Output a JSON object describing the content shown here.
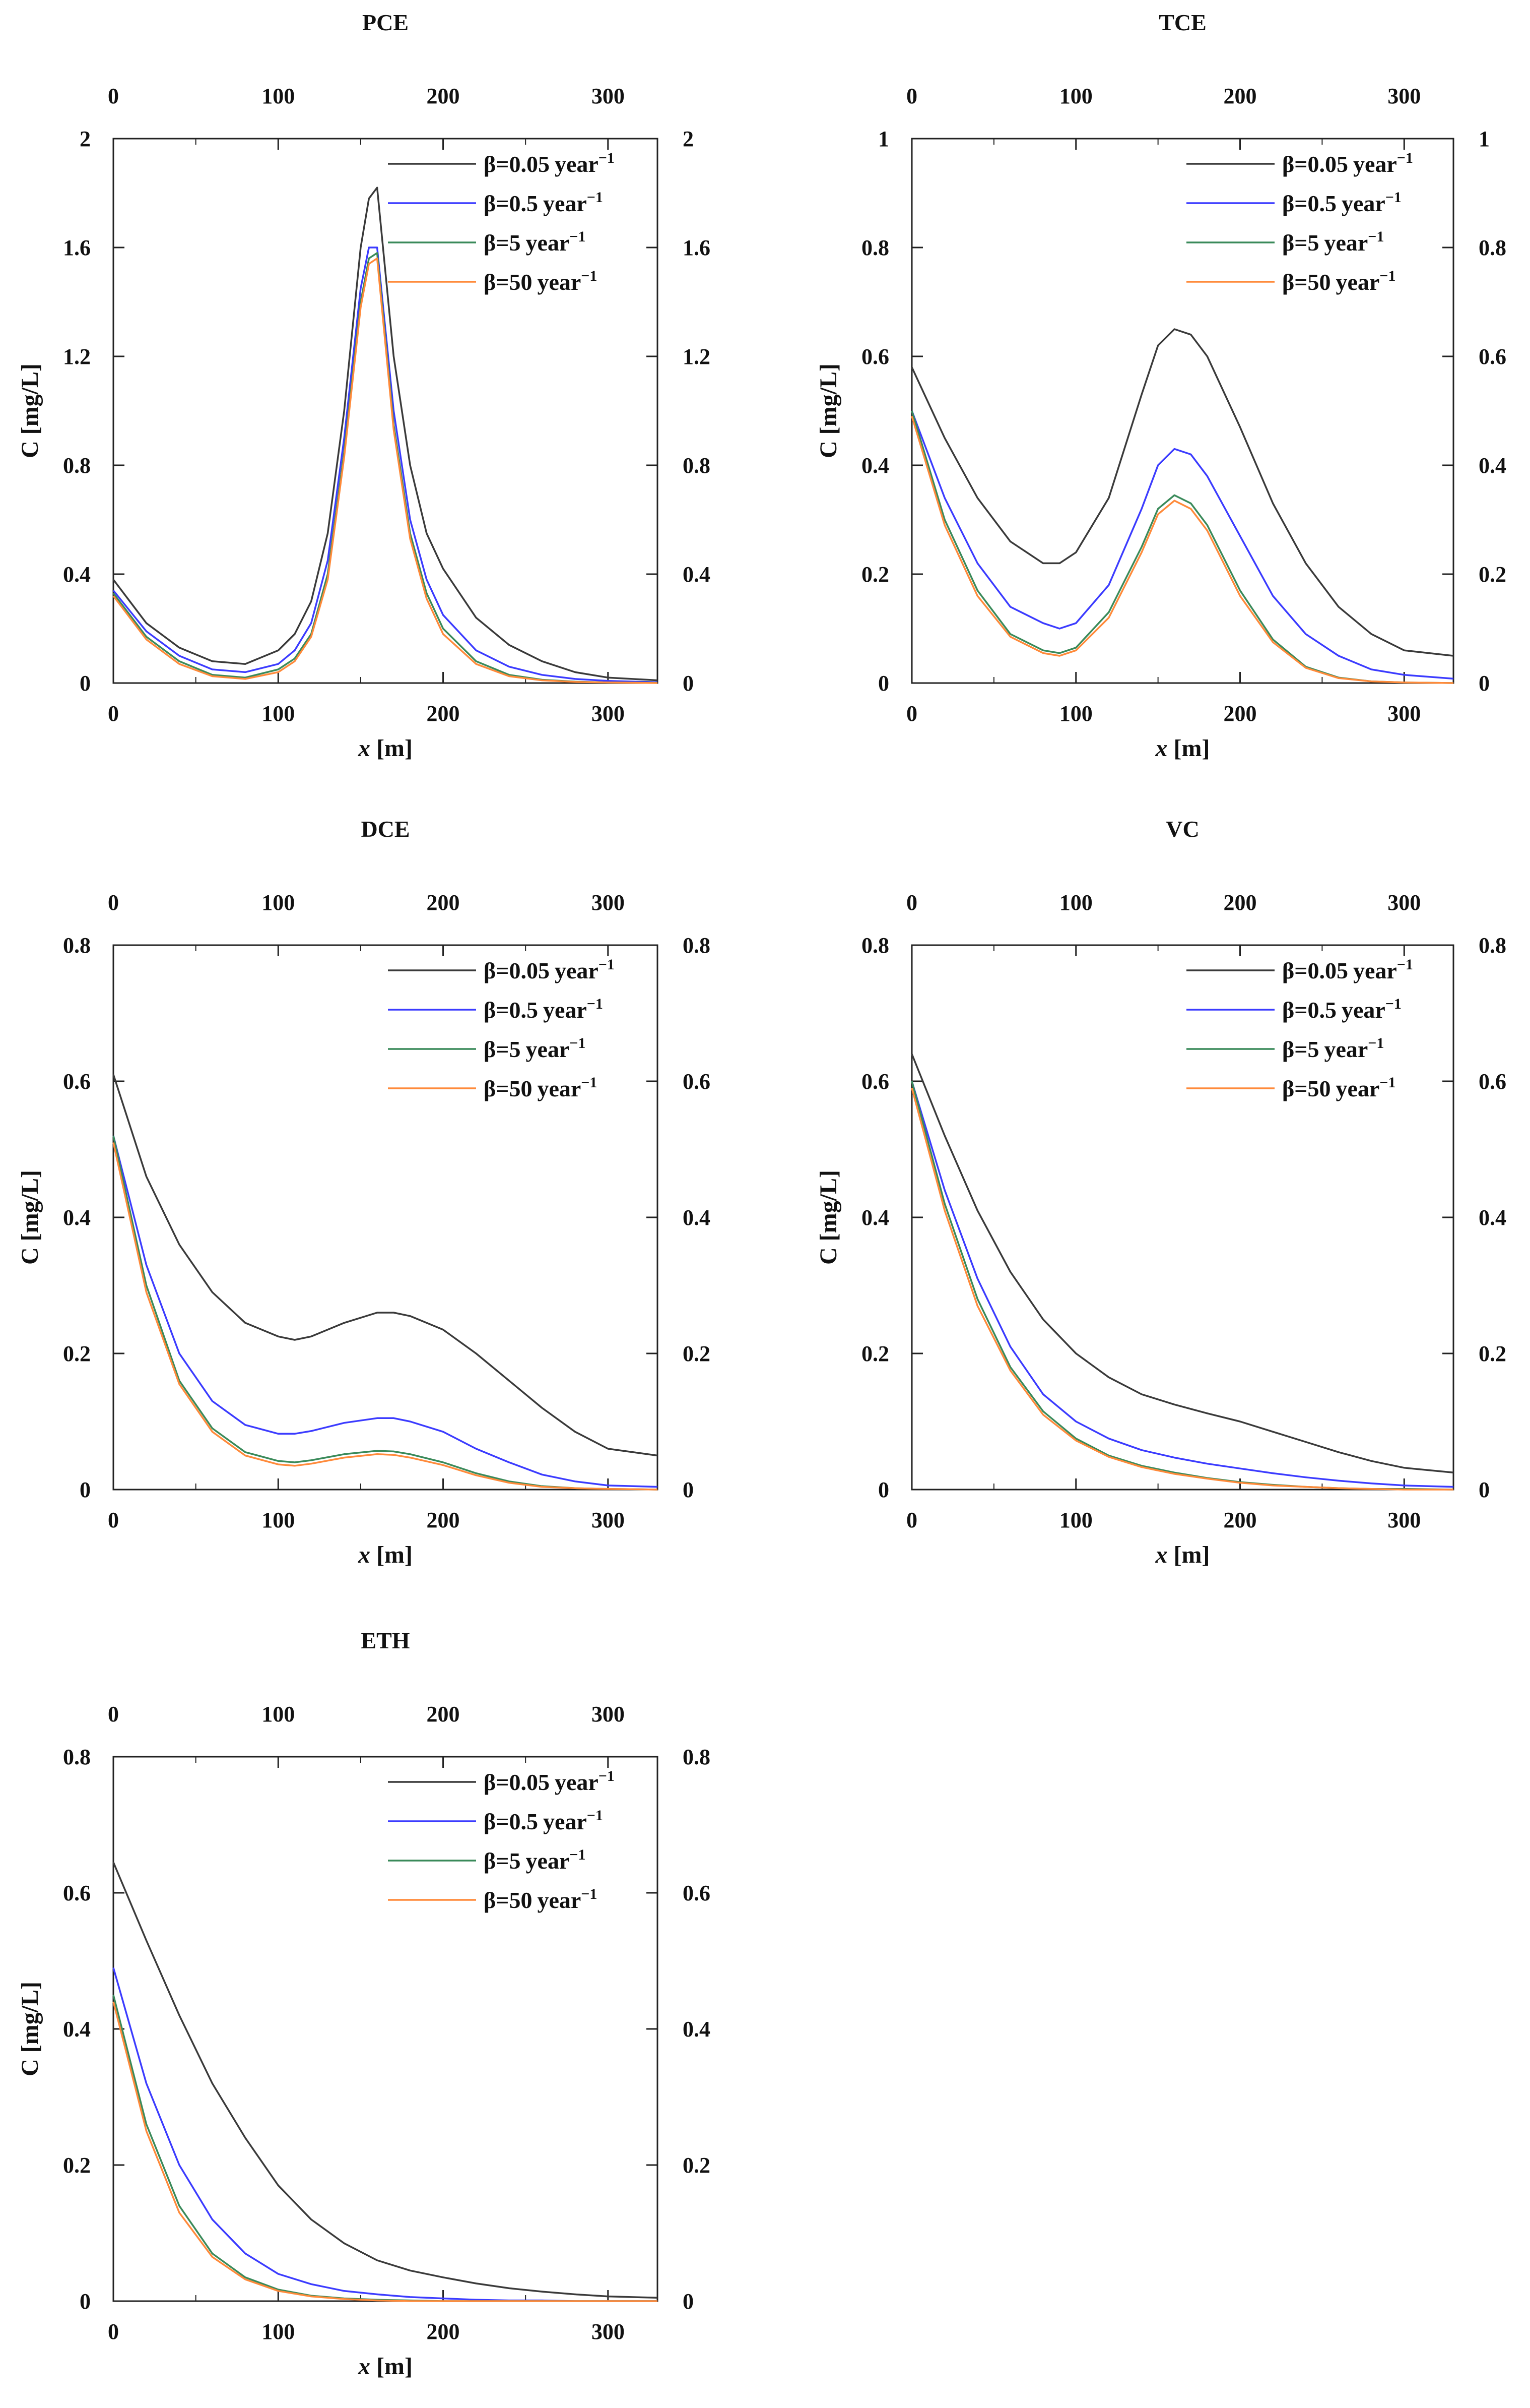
{
  "chart_data": [
    {
      "type": "line",
      "title": "PCE",
      "xlabel_var": "x",
      "xlabel_unit": "[m]",
      "ylabel": "C [mg/L]",
      "xlim": [
        0,
        330
      ],
      "ylim": [
        0,
        2
      ],
      "xticks": [
        0,
        100,
        200,
        300
      ],
      "xtick_labels": [
        "0",
        "100",
        "200",
        "300"
      ],
      "yticks": [
        0,
        0.4,
        0.8,
        1.2,
        1.6,
        2
      ],
      "ytick_labels": [
        "0",
        "0.4",
        "0.8",
        "1.2",
        "1.6",
        "2"
      ],
      "x": [
        0,
        20,
        40,
        60,
        80,
        100,
        110,
        120,
        130,
        140,
        150,
        155,
        160,
        170,
        180,
        190,
        200,
        220,
        240,
        260,
        280,
        300,
        330
      ],
      "series": [
        {
          "name": "β=0.05",
          "unit": "year",
          "exp": "−1",
          "values": [
            0.38,
            0.22,
            0.13,
            0.08,
            0.07,
            0.12,
            0.18,
            0.3,
            0.55,
            1.0,
            1.6,
            1.78,
            1.82,
            1.2,
            0.8,
            0.55,
            0.42,
            0.24,
            0.14,
            0.08,
            0.04,
            0.02,
            0.01
          ]
        },
        {
          "name": "β=0.5",
          "unit": "year",
          "exp": "−1",
          "values": [
            0.34,
            0.19,
            0.1,
            0.05,
            0.04,
            0.07,
            0.12,
            0.22,
            0.45,
            0.9,
            1.45,
            1.6,
            1.6,
            1.0,
            0.6,
            0.38,
            0.25,
            0.12,
            0.06,
            0.03,
            0.015,
            0.008,
            0.003
          ]
        },
        {
          "name": "β=5",
          "unit": "year",
          "exp": "−1",
          "values": [
            0.33,
            0.17,
            0.08,
            0.03,
            0.02,
            0.05,
            0.09,
            0.18,
            0.4,
            0.85,
            1.4,
            1.56,
            1.58,
            0.95,
            0.55,
            0.33,
            0.2,
            0.08,
            0.03,
            0.012,
            0.005,
            0.002,
            0.001
          ]
        },
        {
          "name": "β=50",
          "unit": "year",
          "exp": "−1",
          "values": [
            0.32,
            0.16,
            0.07,
            0.025,
            0.015,
            0.04,
            0.08,
            0.17,
            0.38,
            0.83,
            1.38,
            1.54,
            1.56,
            0.93,
            0.53,
            0.31,
            0.18,
            0.07,
            0.025,
            0.01,
            0.004,
            0.002,
            0.0
          ]
        }
      ]
    },
    {
      "type": "line",
      "title": "TCE",
      "xlabel_var": "x",
      "xlabel_unit": "[m]",
      "ylabel": "C [mg/L]",
      "xlim": [
        0,
        330
      ],
      "ylim": [
        0,
        1
      ],
      "xticks": [
        0,
        100,
        200,
        300
      ],
      "xtick_labels": [
        "0",
        "100",
        "200",
        "300"
      ],
      "yticks": [
        0,
        0.2,
        0.4,
        0.6,
        0.8,
        1
      ],
      "ytick_labels": [
        "0",
        "0.2",
        "0.4",
        "0.6",
        "0.8",
        "1"
      ],
      "x": [
        0,
        20,
        40,
        60,
        80,
        90,
        100,
        120,
        140,
        150,
        160,
        170,
        180,
        200,
        220,
        240,
        260,
        280,
        300,
        330
      ],
      "series": [
        {
          "name": "β=0.05",
          "unit": "year",
          "exp": "−1",
          "values": [
            0.58,
            0.45,
            0.34,
            0.26,
            0.22,
            0.22,
            0.24,
            0.34,
            0.53,
            0.62,
            0.65,
            0.64,
            0.6,
            0.47,
            0.33,
            0.22,
            0.14,
            0.09,
            0.06,
            0.05
          ]
        },
        {
          "name": "β=0.5",
          "unit": "year",
          "exp": "−1",
          "values": [
            0.5,
            0.34,
            0.22,
            0.14,
            0.11,
            0.1,
            0.11,
            0.18,
            0.32,
            0.4,
            0.43,
            0.42,
            0.38,
            0.27,
            0.16,
            0.09,
            0.05,
            0.025,
            0.015,
            0.008
          ]
        },
        {
          "name": "β=5",
          "unit": "year",
          "exp": "−1",
          "values": [
            0.5,
            0.3,
            0.17,
            0.09,
            0.06,
            0.055,
            0.065,
            0.13,
            0.25,
            0.32,
            0.345,
            0.33,
            0.29,
            0.17,
            0.08,
            0.03,
            0.01,
            0.003,
            0.001,
            0.0
          ]
        },
        {
          "name": "β=50",
          "unit": "year",
          "exp": "−1",
          "values": [
            0.49,
            0.29,
            0.16,
            0.085,
            0.055,
            0.05,
            0.06,
            0.12,
            0.24,
            0.31,
            0.335,
            0.32,
            0.28,
            0.16,
            0.075,
            0.028,
            0.009,
            0.003,
            0.001,
            0.0
          ]
        }
      ]
    },
    {
      "type": "line",
      "title": "DCE",
      "xlabel_var": "x",
      "xlabel_unit": "[m]",
      "ylabel": "C [mg/L]",
      "xlim": [
        0,
        330
      ],
      "ylim": [
        0,
        0.8
      ],
      "xticks": [
        0,
        100,
        200,
        300
      ],
      "xtick_labels": [
        "0",
        "100",
        "200",
        "300"
      ],
      "yticks": [
        0,
        0.2,
        0.4,
        0.6,
        0.8
      ],
      "ytick_labels": [
        "0",
        "0.2",
        "0.4",
        "0.6",
        "0.8"
      ],
      "x": [
        0,
        20,
        40,
        60,
        80,
        100,
        110,
        120,
        140,
        160,
        170,
        180,
        200,
        220,
        240,
        260,
        280,
        300,
        330
      ],
      "series": [
        {
          "name": "β=0.05",
          "unit": "year",
          "exp": "−1",
          "values": [
            0.61,
            0.46,
            0.36,
            0.29,
            0.245,
            0.225,
            0.22,
            0.225,
            0.245,
            0.26,
            0.26,
            0.255,
            0.235,
            0.2,
            0.16,
            0.12,
            0.085,
            0.06,
            0.05
          ]
        },
        {
          "name": "β=0.5",
          "unit": "year",
          "exp": "−1",
          "values": [
            0.52,
            0.33,
            0.2,
            0.13,
            0.095,
            0.082,
            0.082,
            0.086,
            0.098,
            0.105,
            0.105,
            0.1,
            0.085,
            0.06,
            0.04,
            0.022,
            0.012,
            0.006,
            0.004
          ]
        },
        {
          "name": "β=5",
          "unit": "year",
          "exp": "−1",
          "values": [
            0.52,
            0.3,
            0.16,
            0.09,
            0.055,
            0.042,
            0.04,
            0.043,
            0.052,
            0.057,
            0.056,
            0.052,
            0.04,
            0.024,
            0.012,
            0.005,
            0.002,
            0.001,
            0.0
          ]
        },
        {
          "name": "β=50",
          "unit": "year",
          "exp": "−1",
          "values": [
            0.51,
            0.29,
            0.155,
            0.085,
            0.05,
            0.037,
            0.035,
            0.038,
            0.047,
            0.052,
            0.051,
            0.047,
            0.036,
            0.021,
            0.01,
            0.004,
            0.002,
            0.001,
            0.0
          ]
        }
      ]
    },
    {
      "type": "line",
      "title": "VC",
      "xlabel_var": "x",
      "xlabel_unit": "[m]",
      "ylabel": "C [mg/L]",
      "xlim": [
        0,
        330
      ],
      "ylim": [
        0,
        0.8
      ],
      "xticks": [
        0,
        100,
        200,
        300
      ],
      "xtick_labels": [
        "0",
        "100",
        "200",
        "300"
      ],
      "yticks": [
        0,
        0.2,
        0.4,
        0.6,
        0.8
      ],
      "ytick_labels": [
        "0",
        "0.2",
        "0.4",
        "0.6",
        "0.8"
      ],
      "x": [
        0,
        20,
        40,
        60,
        80,
        100,
        120,
        140,
        160,
        180,
        200,
        220,
        240,
        260,
        280,
        300,
        330
      ],
      "series": [
        {
          "name": "β=0.05",
          "unit": "year",
          "exp": "−1",
          "values": [
            0.64,
            0.52,
            0.41,
            0.32,
            0.25,
            0.2,
            0.165,
            0.14,
            0.125,
            0.112,
            0.1,
            0.085,
            0.07,
            0.055,
            0.042,
            0.032,
            0.025
          ]
        },
        {
          "name": "β=0.5",
          "unit": "year",
          "exp": "−1",
          "values": [
            0.6,
            0.44,
            0.31,
            0.21,
            0.14,
            0.1,
            0.075,
            0.058,
            0.047,
            0.038,
            0.031,
            0.024,
            0.018,
            0.013,
            0.009,
            0.006,
            0.004
          ]
        },
        {
          "name": "β=5",
          "unit": "year",
          "exp": "−1",
          "values": [
            0.6,
            0.42,
            0.28,
            0.18,
            0.115,
            0.075,
            0.05,
            0.035,
            0.025,
            0.017,
            0.011,
            0.007,
            0.004,
            0.002,
            0.001,
            0.001,
            0.0
          ]
        },
        {
          "name": "β=50",
          "unit": "year",
          "exp": "−1",
          "values": [
            0.59,
            0.41,
            0.27,
            0.175,
            0.11,
            0.072,
            0.048,
            0.033,
            0.023,
            0.016,
            0.01,
            0.006,
            0.004,
            0.002,
            0.001,
            0.0,
            0.0
          ]
        }
      ]
    },
    {
      "type": "line",
      "title": "ETH",
      "xlabel_var": "x",
      "xlabel_unit": "[m]",
      "ylabel": "C [mg/L]",
      "xlim": [
        0,
        330
      ],
      "ylim": [
        0,
        0.8
      ],
      "xticks": [
        0,
        100,
        200,
        300
      ],
      "xtick_labels": [
        "0",
        "100",
        "200",
        "300"
      ],
      "yticks": [
        0,
        0.2,
        0.4,
        0.6,
        0.8
      ],
      "ytick_labels": [
        "0",
        "0.2",
        "0.4",
        "0.6",
        "0.8"
      ],
      "x": [
        0,
        20,
        40,
        60,
        80,
        100,
        120,
        140,
        160,
        180,
        200,
        220,
        240,
        260,
        280,
        300,
        330
      ],
      "series": [
        {
          "name": "β=0.05",
          "unit": "year",
          "exp": "−1",
          "values": [
            0.645,
            0.53,
            0.42,
            0.32,
            0.24,
            0.17,
            0.12,
            0.085,
            0.06,
            0.045,
            0.035,
            0.026,
            0.019,
            0.014,
            0.01,
            0.007,
            0.005
          ]
        },
        {
          "name": "β=0.5",
          "unit": "year",
          "exp": "−1",
          "values": [
            0.49,
            0.32,
            0.2,
            0.12,
            0.07,
            0.04,
            0.025,
            0.015,
            0.01,
            0.006,
            0.004,
            0.002,
            0.001,
            0.001,
            0.0,
            0.0,
            0.0
          ]
        },
        {
          "name": "β=5",
          "unit": "year",
          "exp": "−1",
          "values": [
            0.45,
            0.26,
            0.14,
            0.07,
            0.035,
            0.017,
            0.008,
            0.004,
            0.002,
            0.001,
            0.0,
            0.0,
            0.0,
            0.0,
            0.0,
            0.0,
            0.0
          ]
        },
        {
          "name": "β=50",
          "unit": "year",
          "exp": "−1",
          "values": [
            0.44,
            0.25,
            0.13,
            0.065,
            0.032,
            0.015,
            0.007,
            0.003,
            0.001,
            0.0,
            0.0,
            0.0,
            0.0,
            0.0,
            0.0,
            0.0,
            0.0
          ]
        }
      ]
    }
  ],
  "colors": {
    "series": [
      "#3a3a3a",
      "#3b3bff",
      "#3a8a5a",
      "#ff8a3a"
    ],
    "axis": "#222222"
  }
}
